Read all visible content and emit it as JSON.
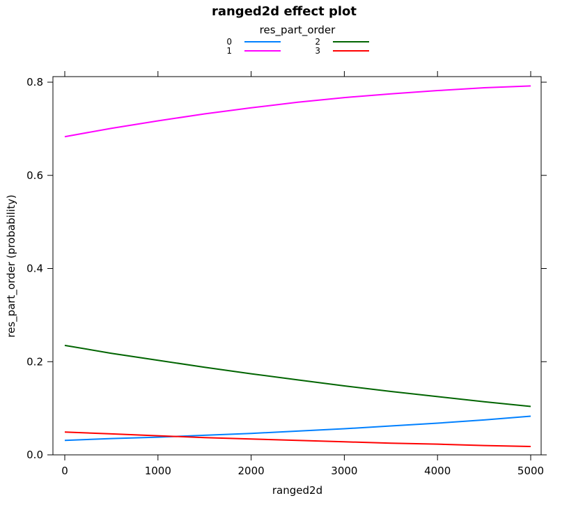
{
  "chart_data": {
    "type": "line",
    "title": "ranged2d effect plot",
    "xlabel": "ranged2d",
    "ylabel": "res_part_order (probability)",
    "xlim": [
      -200,
      5200
    ],
    "ylim": [
      0.0,
      0.81
    ],
    "x_ticks": [
      0,
      1000,
      2000,
      3000,
      4000,
      5000
    ],
    "x_tick_labels": [
      "0",
      "1000",
      "2000",
      "3000",
      "4000",
      "5000"
    ],
    "y_ticks": [
      0.0,
      0.2,
      0.4,
      0.6,
      0.8
    ],
    "y_tick_labels": [
      "0.0",
      "0.2",
      "0.4",
      "0.6",
      "0.8"
    ],
    "legend_title": "res_part_order",
    "legend_position": "top",
    "grid": false,
    "x": [
      0,
      500,
      1000,
      1500,
      2000,
      2500,
      3000,
      3500,
      4000,
      4500,
      5000
    ],
    "series": [
      {
        "name": "0",
        "color": "#0080ff",
        "values": [
          0.031,
          0.035,
          0.038,
          0.042,
          0.046,
          0.051,
          0.056,
          0.062,
          0.068,
          0.075,
          0.083
        ]
      },
      {
        "name": "1",
        "color": "#ff00ff",
        "values": [
          0.683,
          0.701,
          0.717,
          0.732,
          0.745,
          0.757,
          0.767,
          0.775,
          0.782,
          0.788,
          0.792
        ]
      },
      {
        "name": "2",
        "color": "#006400",
        "values": [
          0.235,
          0.218,
          0.203,
          0.188,
          0.174,
          0.161,
          0.148,
          0.136,
          0.125,
          0.114,
          0.104
        ]
      },
      {
        "name": "3",
        "color": "#ff0000",
        "values": [
          0.049,
          0.045,
          0.041,
          0.037,
          0.034,
          0.031,
          0.028,
          0.025,
          0.023,
          0.02,
          0.018
        ]
      }
    ]
  }
}
